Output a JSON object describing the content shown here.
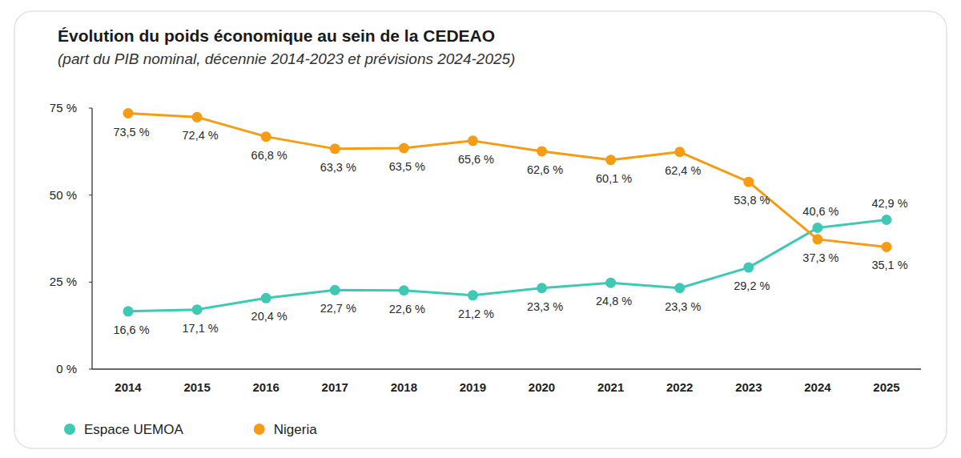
{
  "chart_data": {
    "type": "line",
    "title": "Évolution du poids économique au sein de la CEDEAO",
    "subtitle": "(part du PIB nominal, décennie 2014-2023 et prévisions 2024-2025)",
    "categories": [
      "2014",
      "2015",
      "2016",
      "2017",
      "2018",
      "2019",
      "2020",
      "2021",
      "2022",
      "2023",
      "2024",
      "2025"
    ],
    "series": [
      {
        "name": "Espace UEMOA",
        "color": "#3fc8b3",
        "marker": "circle",
        "line_style": "solid",
        "values": [
          16.6,
          17.1,
          20.4,
          22.7,
          22.6,
          21.2,
          23.3,
          24.8,
          23.3,
          29.2,
          40.6,
          42.9
        ],
        "value_labels": [
          "16,6 %",
          "17,1 %",
          "20,4 %",
          "22,7 %",
          "22,6 %",
          "21,2 %",
          "23,3 %",
          "24,8 %",
          "23,3 %",
          "29,2 %",
          "40,6 %",
          "42,9 %"
        ]
      },
      {
        "name": "Nigeria",
        "color": "#f59c16",
        "marker": "circle",
        "line_style": "solid",
        "values": [
          73.5,
          72.4,
          66.8,
          63.3,
          63.5,
          65.6,
          62.6,
          60.1,
          62.4,
          53.8,
          37.3,
          35.1
        ],
        "value_labels": [
          "73,5 %",
          "72,4 %",
          "66,8 %",
          "63,3 %",
          "63,5 %",
          "65,6 %",
          "62,6 %",
          "60,1 %",
          "62,4 %",
          "53,8 %",
          "37,3 %",
          "35,1 %"
        ]
      }
    ],
    "ylim": [
      0,
      75
    ],
    "yticks": [
      {
        "value": 0,
        "label": "0 %"
      },
      {
        "value": 25,
        "label": "25 %"
      },
      {
        "value": 50,
        "label": "50 %"
      },
      {
        "value": 75,
        "label": "75 %"
      }
    ],
    "grid": false,
    "legend": "bottom",
    "data_labels": true
  }
}
